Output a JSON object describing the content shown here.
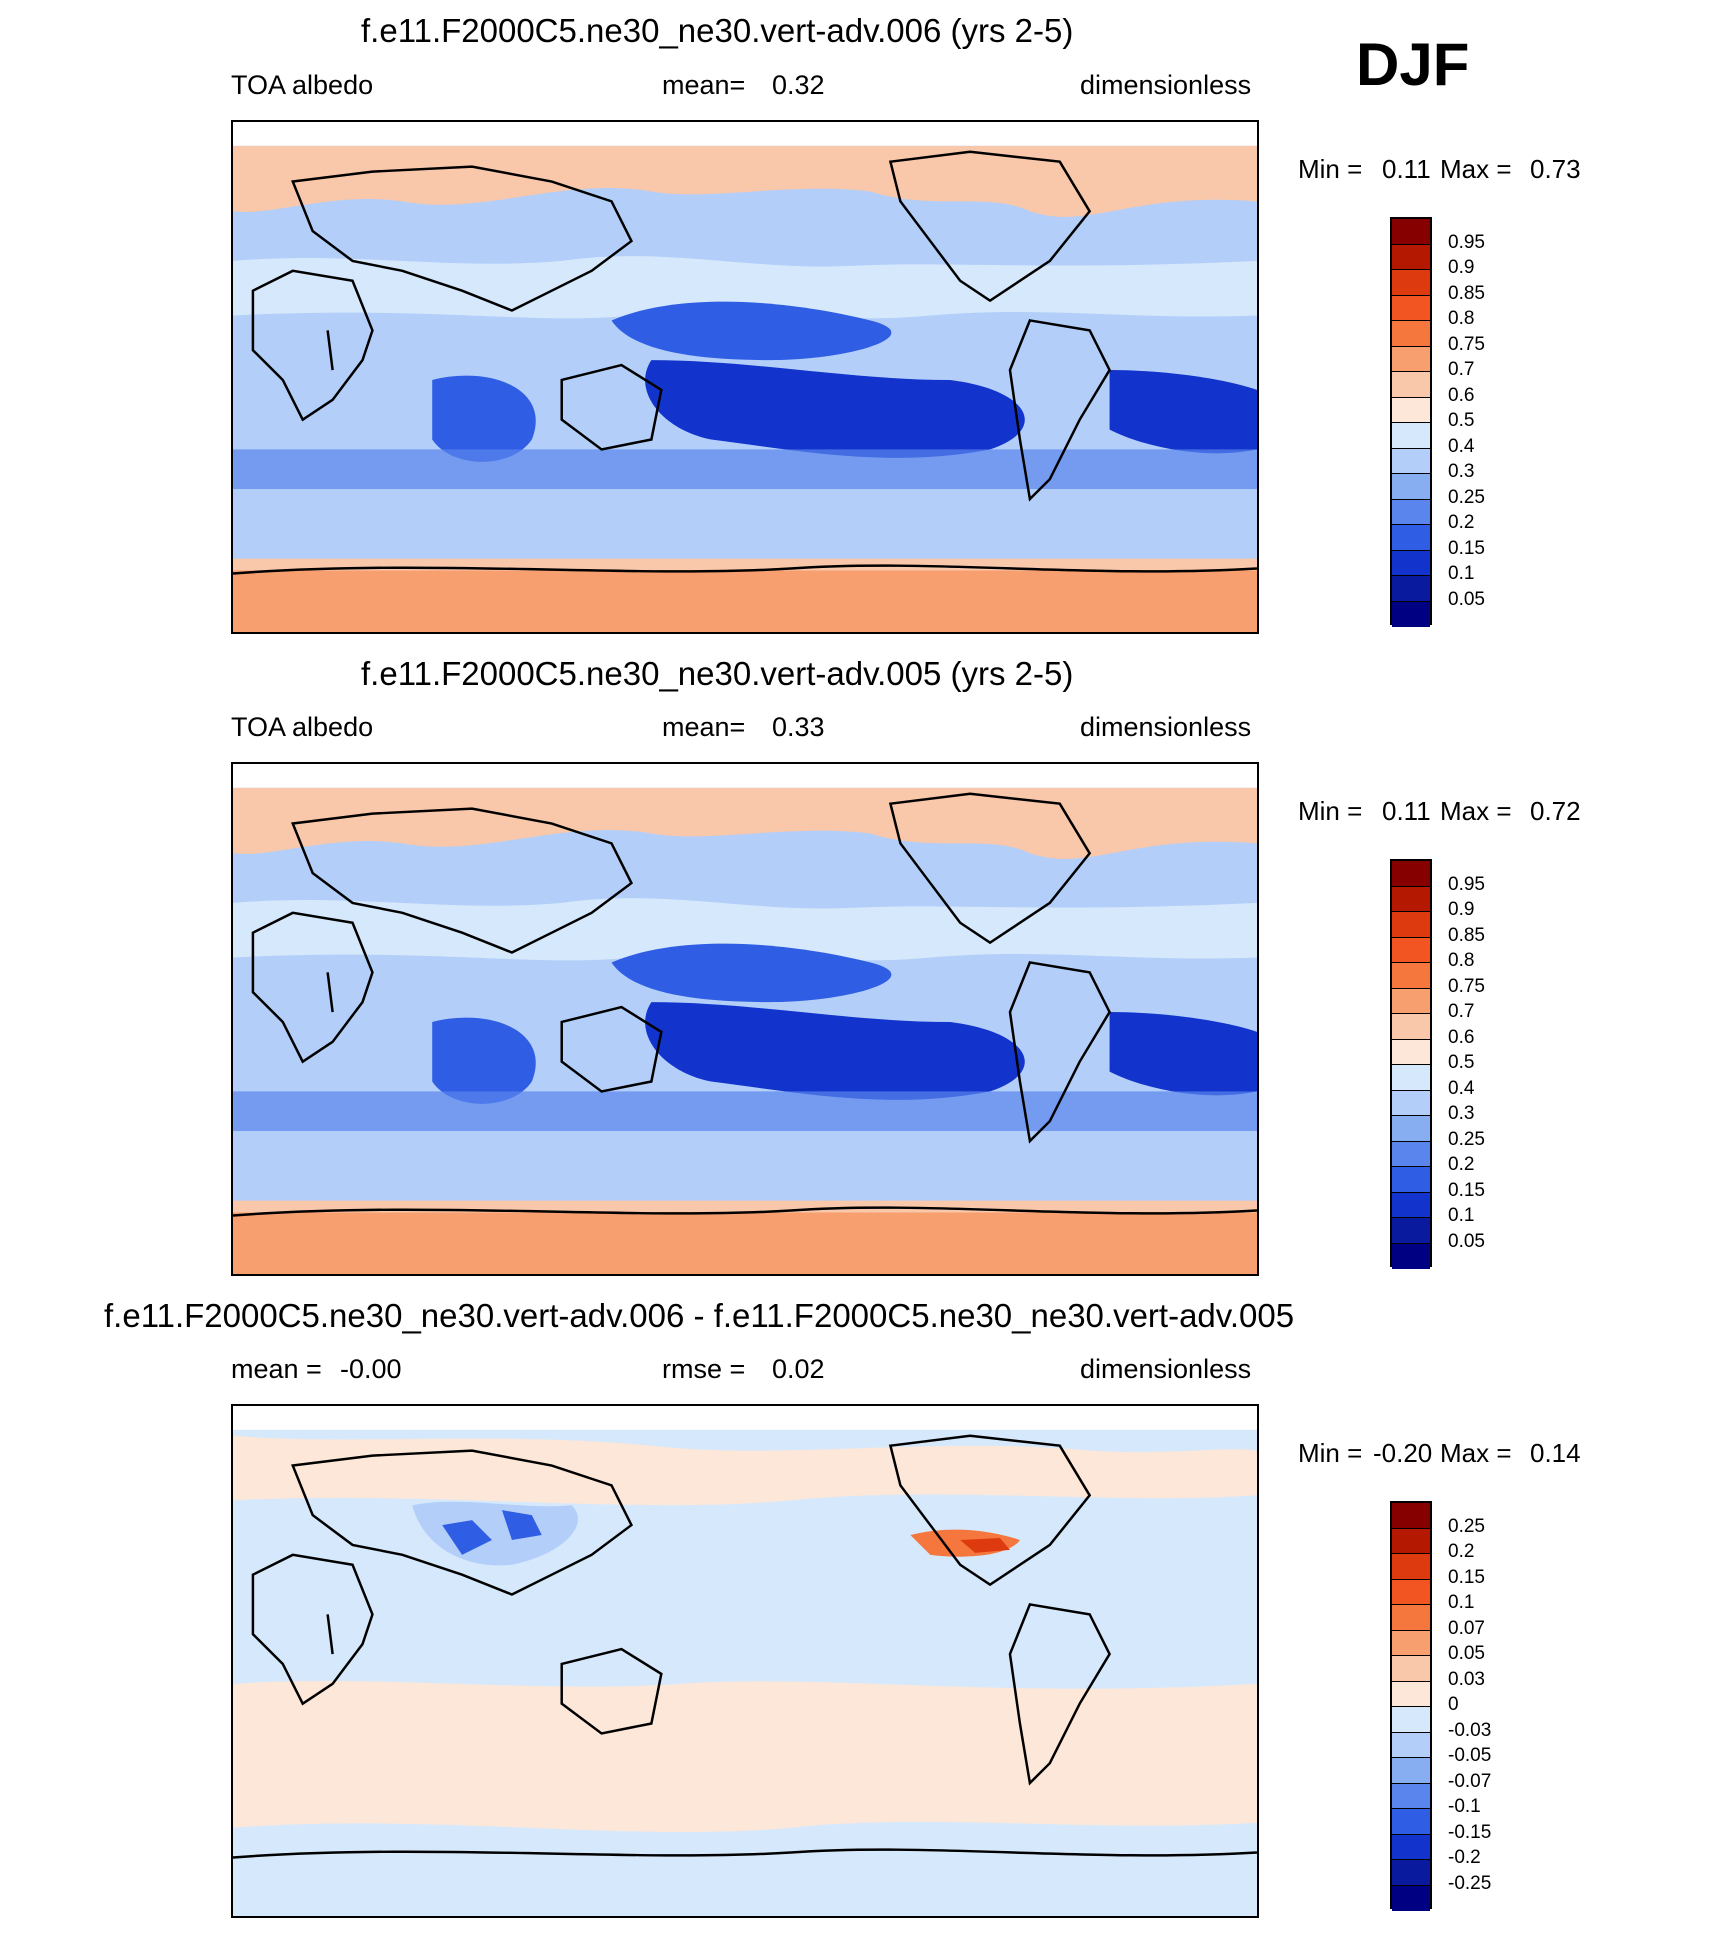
{
  "season": "DJF",
  "chart_data": [
    {
      "type": "heatmap",
      "title": "f.e11.F2000C5.ne30_ne30.vert-adv.006 (yrs 2-5)",
      "variable": "TOA albedo",
      "mean_label": "mean=",
      "mean_value": "0.32",
      "units": "dimensionless",
      "min_label": "Min =",
      "min_value": "0.11",
      "max_label": "Max =",
      "max_value": "0.73",
      "colorbar_levels": [
        "0.95",
        "0.9",
        "0.85",
        "0.8",
        "0.75",
        "0.7",
        "0.6",
        "0.5",
        "0.4",
        "0.3",
        "0.25",
        "0.2",
        "0.15",
        "0.1",
        "0.05"
      ],
      "colorbar_colors": [
        "#870000",
        "#b41800",
        "#dd3a10",
        "#f25522",
        "#f5773e",
        "#f89f70",
        "#f9c7aa",
        "#fde7d8",
        "#d6e8fb",
        "#b3cff9",
        "#88aef2",
        "#5a85ec",
        "#2f5ee4",
        "#1234cc",
        "#0a1a9e",
        "#000082"
      ]
    },
    {
      "type": "heatmap",
      "title": "f.e11.F2000C5.ne30_ne30.vert-adv.005 (yrs 2-5)",
      "variable": "TOA albedo",
      "mean_label": "mean=",
      "mean_value": "0.33",
      "units": "dimensionless",
      "min_label": "Min =",
      "min_value": "0.11",
      "max_label": "Max =",
      "max_value": "0.72",
      "colorbar_levels": [
        "0.95",
        "0.9",
        "0.85",
        "0.8",
        "0.75",
        "0.7",
        "0.6",
        "0.5",
        "0.4",
        "0.3",
        "0.25",
        "0.2",
        "0.15",
        "0.1",
        "0.05"
      ],
      "colorbar_colors": [
        "#870000",
        "#b41800",
        "#dd3a10",
        "#f25522",
        "#f5773e",
        "#f89f70",
        "#f9c7aa",
        "#fde7d8",
        "#d6e8fb",
        "#b3cff9",
        "#88aef2",
        "#5a85ec",
        "#2f5ee4",
        "#1234cc",
        "#0a1a9e",
        "#000082"
      ]
    },
    {
      "type": "heatmap",
      "title": "f.e11.F2000C5.ne30_ne30.vert-adv.006 - f.e11.F2000C5.ne30_ne30.vert-adv.005",
      "mean_label": "mean =",
      "mean_value": "-0.00",
      "rmse_label": "rmse =",
      "rmse_value": "0.02",
      "units": "dimensionless",
      "min_label": "Min =",
      "min_value": "-0.20",
      "max_label": "Max =",
      "max_value": "0.14",
      "colorbar_levels": [
        "0.25",
        "0.2",
        "0.15",
        "0.1",
        "0.07",
        "0.05",
        "0.03",
        "0",
        "-0.03",
        "-0.05",
        "-0.07",
        "-0.1",
        "-0.15",
        "-0.2",
        "-0.25"
      ],
      "colorbar_colors": [
        "#870000",
        "#b41800",
        "#dd3a10",
        "#f25522",
        "#f5773e",
        "#f89f70",
        "#f9c7aa",
        "#fde7d8",
        "#d6e8fb",
        "#b3cff9",
        "#88aef2",
        "#5a85ec",
        "#2f5ee4",
        "#1234cc",
        "#0a1a9e",
        "#000082"
      ]
    }
  ]
}
